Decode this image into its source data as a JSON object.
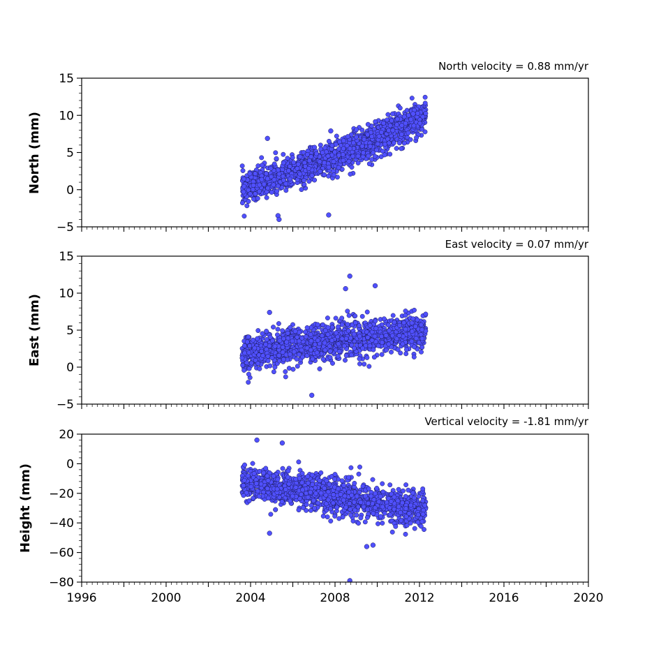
{
  "chart_data": [
    {
      "type": "scatter",
      "title": "North velocity = 0.88 mm/yr",
      "ylabel": "North (mm)",
      "xlim": [
        1996,
        2020
      ],
      "ylim": [
        -5,
        15
      ],
      "yticks": [
        -5,
        0,
        5,
        10,
        15
      ],
      "ytick_labels": [
        "−5",
        "0",
        "5",
        "10",
        "15"
      ],
      "x_range": [
        2003.6,
        2012.3
      ],
      "trend": {
        "start": 0.2,
        "slope_per_year": 0.75,
        "curvature": 0.045,
        "pivot": 2003.6
      },
      "noise_sd": 1.1,
      "outliers": [
        {
          "x": 2004.8,
          "y": 6.9
        },
        {
          "x": 2007.8,
          "y": 7.9
        },
        {
          "x": 2011.7,
          "y": 10.2
        },
        {
          "x": 2005.3,
          "y": -3.5
        },
        {
          "x": 2005.35,
          "y": -4.0
        },
        {
          "x": 2007.7,
          "y": -3.4
        }
      ],
      "grid": false
    },
    {
      "type": "scatter",
      "title": "East velocity = 0.07 mm/yr",
      "ylabel": "East (mm)",
      "xlim": [
        1996,
        2020
      ],
      "ylim": [
        -5,
        15
      ],
      "yticks": [
        -5,
        0,
        5,
        10,
        15
      ],
      "ytick_labels": [
        "−5",
        "0",
        "5",
        "10",
        "15"
      ],
      "x_range": [
        2003.6,
        2012.3
      ],
      "trend": {
        "start": 1.8,
        "slope_per_year": 0.5,
        "curvature": -0.02,
        "pivot": 2003.6
      },
      "noise_sd": 1.2,
      "outliers": [
        {
          "x": 2008.7,
          "y": 12.3
        },
        {
          "x": 2008.5,
          "y": 10.6
        },
        {
          "x": 2009.9,
          "y": 11.0
        },
        {
          "x": 2006.9,
          "y": -3.8
        },
        {
          "x": 2004.9,
          "y": 7.4
        }
      ],
      "grid": false
    },
    {
      "type": "scatter",
      "title": "Vertical velocity = -1.81 mm/yr",
      "ylabel": "Height (mm)",
      "xlabel": "",
      "xlim": [
        1996,
        2020
      ],
      "ylim": [
        -80,
        20
      ],
      "yticks": [
        -80,
        -60,
        -40,
        -20,
        0,
        20
      ],
      "ytick_labels": [
        "−80",
        "−60",
        "−40",
        "−20",
        "0",
        "20"
      ],
      "xticks": [
        1996,
        2000,
        2004,
        2008,
        2012,
        2016,
        2020
      ],
      "xtick_labels": [
        "1996",
        "2000",
        "2004",
        "2008",
        "2012",
        "2016",
        "2020"
      ],
      "x_range": [
        2003.6,
        2012.3
      ],
      "trend": {
        "start": -12,
        "slope_per_year": -2.6,
        "curvature": 0.05,
        "pivot": 2003.6
      },
      "noise_sd": 6.0,
      "outliers": [
        {
          "x": 2004.3,
          "y": 16
        },
        {
          "x": 2005.5,
          "y": 14
        },
        {
          "x": 2004.9,
          "y": -47
        },
        {
          "x": 2009.5,
          "y": -56
        },
        {
          "x": 2009.8,
          "y": -55
        },
        {
          "x": 2008.7,
          "y": -79
        }
      ],
      "grid": false
    }
  ],
  "colors": {
    "marker_fill": "#5050ff",
    "marker_edge": "#1a1a55",
    "axis": "#000000"
  }
}
